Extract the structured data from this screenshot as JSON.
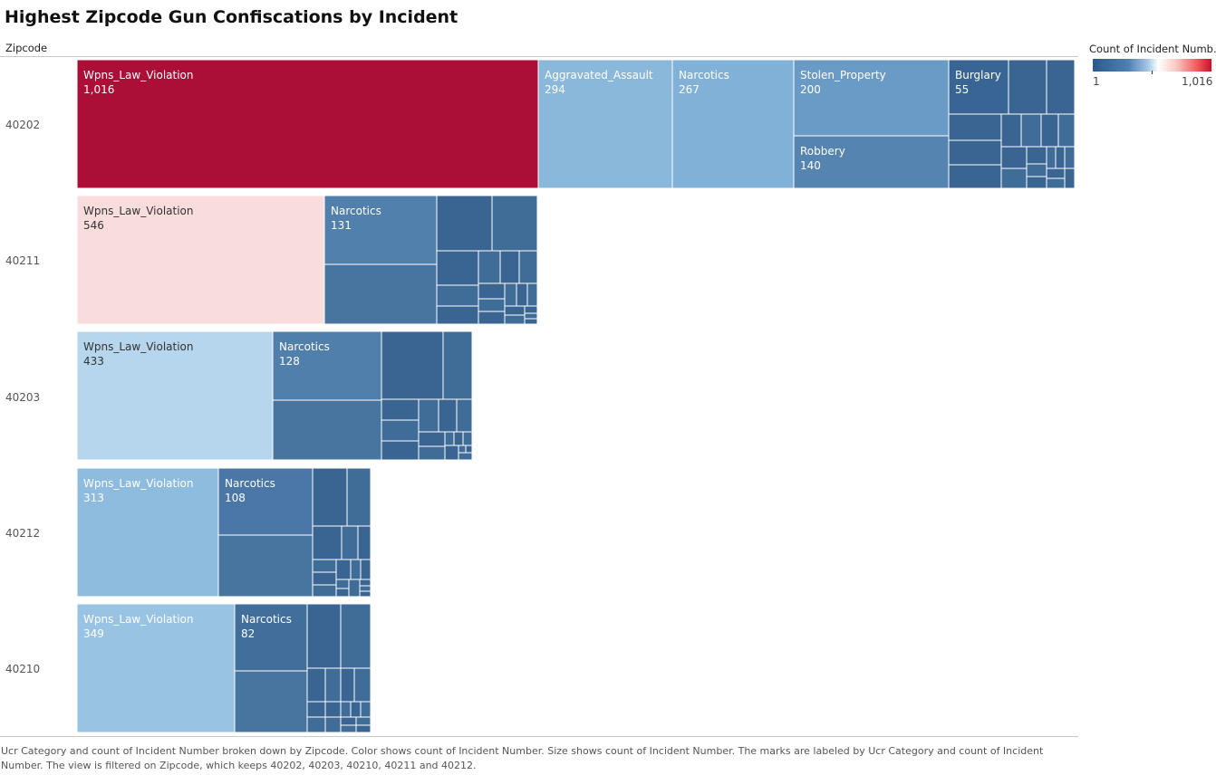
{
  "title": "Highest Zipcode Gun Confiscations by Incident",
  "column_header": "Zipcode",
  "legend": {
    "title": "Count of Incident Numb..",
    "min_label": "1",
    "max_label": "1,016",
    "colors": {
      "low": "#2c5a8c",
      "mid": "#ffffff",
      "high": "#c8102e"
    }
  },
  "caption": "Ucr Category and count of Incident Number broken down by Zipcode.  Color shows count of Incident Number.  Size shows count of Incident Number.  The marks are labeled by Ucr Category and count of Incident Number. The view is filtered on Zipcode, which keeps 40202, 40203, 40210, 40211 and 40212.",
  "chart_data": {
    "type": "treemap",
    "size_measure": "Count of Incident Number",
    "color_measure": "Count of Incident Number",
    "color_range": [
      1,
      1016
    ],
    "rows": [
      {
        "zipcode": "40202",
        "cells": [
          {
            "category": "Wpns_Law_Violation",
            "label": "1,016",
            "value": 1016
          },
          {
            "category": "Aggravated_Assault",
            "label": "294",
            "value": 294
          },
          {
            "category": "Narcotics",
            "label": "267",
            "value": 267
          },
          {
            "category": "Stolen_Property",
            "label": "200",
            "value": 200
          },
          {
            "category": "Robbery",
            "label": "140",
            "value": 140
          },
          {
            "category": "Burglary",
            "label": "55",
            "value": 55
          }
        ]
      },
      {
        "zipcode": "40211",
        "cells": [
          {
            "category": "Wpns_Law_Violation",
            "label": "546",
            "value": 546
          },
          {
            "category": "Narcotics",
            "label": "131",
            "value": 131
          }
        ]
      },
      {
        "zipcode": "40203",
        "cells": [
          {
            "category": "Wpns_Law_Violation",
            "label": "433",
            "value": 433
          },
          {
            "category": "Narcotics",
            "label": "128",
            "value": 128
          }
        ]
      },
      {
        "zipcode": "40212",
        "cells": [
          {
            "category": "Wpns_Law_Violation",
            "label": "313",
            "value": 313
          },
          {
            "category": "Narcotics",
            "label": "108",
            "value": 108
          }
        ]
      },
      {
        "zipcode": "40210",
        "cells": [
          {
            "category": "Wpns_Law_Violation",
            "label": "349",
            "value": 349
          },
          {
            "category": "Narcotics",
            "label": "82",
            "value": 82
          }
        ]
      }
    ]
  }
}
